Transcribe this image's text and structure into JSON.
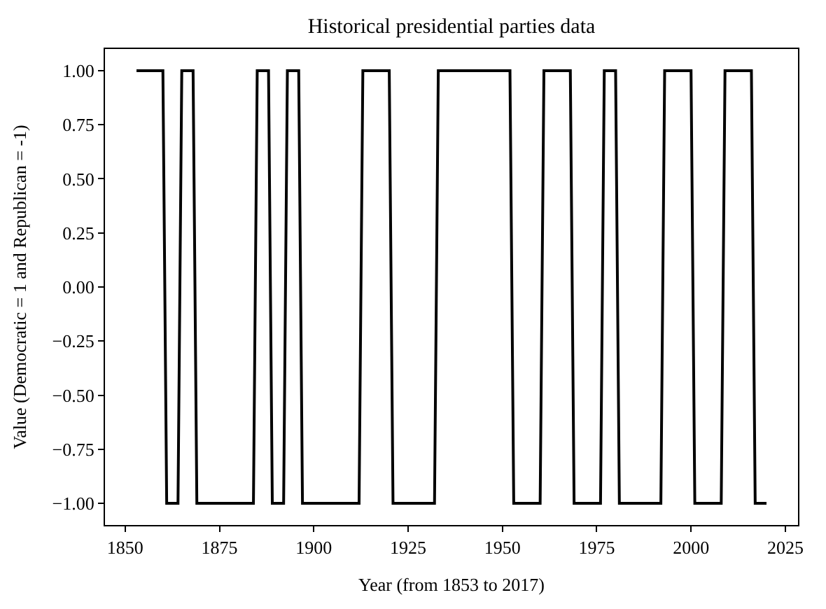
{
  "chart_data": {
    "type": "line",
    "title": "Historical presidential parties data",
    "xlabel": "Year (from 1853 to 2017)",
    "ylabel": "Value (Democratic = 1 and Republican = -1)",
    "series": [
      {
        "color": "#000000",
        "x": [
          1853,
          1860,
          1861,
          1864,
          1865,
          1868,
          1869,
          1884,
          1885,
          1888,
          1889,
          1892,
          1893,
          1896,
          1897,
          1912,
          1913,
          1920,
          1921,
          1932,
          1933,
          1952,
          1953,
          1960,
          1961,
          1968,
          1969,
          1976,
          1977,
          1980,
          1981,
          1992,
          1993,
          2000,
          2001,
          2008,
          2009,
          2016,
          2017,
          2020
        ],
        "values": [
          1,
          1,
          -1,
          -1,
          1,
          1,
          -1,
          -1,
          1,
          1,
          -1,
          -1,
          1,
          1,
          -1,
          -1,
          1,
          1,
          -1,
          -1,
          1,
          1,
          -1,
          -1,
          1,
          1,
          -1,
          -1,
          1,
          1,
          -1,
          -1,
          1,
          1,
          -1,
          -1,
          1,
          1,
          -1,
          -1
        ]
      }
    ],
    "xlim": [
      1844.65,
      2028.35
    ],
    "xticks": [
      1850,
      1875,
      1900,
      1925,
      1950,
      1975,
      2000,
      2025
    ],
    "ylim": [
      -1.1,
      1.1
    ],
    "yticks": [
      {
        "value": -1,
        "label": "−1.00"
      },
      {
        "value": -0.75,
        "label": "−0.75"
      },
      {
        "value": -0.5,
        "label": "−0.50"
      },
      {
        "value": -0.25,
        "label": "−0.25"
      },
      {
        "value": 0,
        "label": "0.00"
      },
      {
        "value": 0.25,
        "label": "0.25"
      },
      {
        "value": 0.5,
        "label": "0.50"
      },
      {
        "value": 0.75,
        "label": "0.75"
      },
      {
        "value": 1,
        "label": "1.00"
      }
    ],
    "marker": "none",
    "line_style": "solid"
  }
}
